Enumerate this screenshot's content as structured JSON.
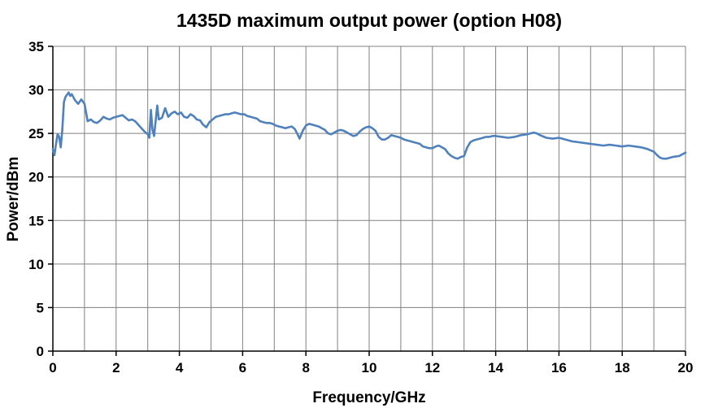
{
  "chart_data": {
    "type": "line",
    "title": "1435D maximum output power (option H08)",
    "xlabel": "Frequency/GHz",
    "ylabel": "Power/dBm",
    "xlim": [
      0,
      20
    ],
    "ylim": [
      0,
      35
    ],
    "x_grid_interval": 1,
    "x_label_interval": 2,
    "y_grid_interval": 5,
    "y_label_interval": 5,
    "grid": true,
    "legend": "none",
    "line_color": "#4F81BD",
    "grid_color": "#808080",
    "axis_color": "#000000",
    "series": [
      {
        "name": "maximum output power",
        "points": [
          [
            0.0,
            23.2
          ],
          [
            0.05,
            22.5
          ],
          [
            0.1,
            23.8
          ],
          [
            0.15,
            24.9
          ],
          [
            0.2,
            24.6
          ],
          [
            0.25,
            23.4
          ],
          [
            0.3,
            25.5
          ],
          [
            0.35,
            28.6
          ],
          [
            0.4,
            29.2
          ],
          [
            0.5,
            29.7
          ],
          [
            0.55,
            29.3
          ],
          [
            0.6,
            29.5
          ],
          [
            0.7,
            28.8
          ],
          [
            0.8,
            28.4
          ],
          [
            0.9,
            28.9
          ],
          [
            1.0,
            28.4
          ],
          [
            1.1,
            26.4
          ],
          [
            1.2,
            26.6
          ],
          [
            1.3,
            26.3
          ],
          [
            1.4,
            26.2
          ],
          [
            1.5,
            26.5
          ],
          [
            1.6,
            26.9
          ],
          [
            1.7,
            26.7
          ],
          [
            1.8,
            26.6
          ],
          [
            1.9,
            26.8
          ],
          [
            2.0,
            26.9
          ],
          [
            2.1,
            27.0
          ],
          [
            2.2,
            27.1
          ],
          [
            2.3,
            26.8
          ],
          [
            2.4,
            26.5
          ],
          [
            2.5,
            26.6
          ],
          [
            2.6,
            26.4
          ],
          [
            2.7,
            26.0
          ],
          [
            2.8,
            25.6
          ],
          [
            2.9,
            25.2
          ],
          [
            3.0,
            24.9
          ],
          [
            3.05,
            24.5
          ],
          [
            3.1,
            27.7
          ],
          [
            3.15,
            25.4
          ],
          [
            3.2,
            24.7
          ],
          [
            3.3,
            28.2
          ],
          [
            3.35,
            26.6
          ],
          [
            3.45,
            26.8
          ],
          [
            3.55,
            27.9
          ],
          [
            3.65,
            26.9
          ],
          [
            3.75,
            27.3
          ],
          [
            3.85,
            27.5
          ],
          [
            3.95,
            27.2
          ],
          [
            4.05,
            27.4
          ],
          [
            4.15,
            26.9
          ],
          [
            4.25,
            26.8
          ],
          [
            4.35,
            27.2
          ],
          [
            4.45,
            27.0
          ],
          [
            4.55,
            26.6
          ],
          [
            4.65,
            26.5
          ],
          [
            4.75,
            26.0
          ],
          [
            4.85,
            25.7
          ],
          [
            4.95,
            26.3
          ],
          [
            5.05,
            26.6
          ],
          [
            5.15,
            26.9
          ],
          [
            5.25,
            27.0
          ],
          [
            5.35,
            27.1
          ],
          [
            5.45,
            27.2
          ],
          [
            5.55,
            27.2
          ],
          [
            5.65,
            27.3
          ],
          [
            5.75,
            27.4
          ],
          [
            5.85,
            27.3
          ],
          [
            5.95,
            27.2
          ],
          [
            6.05,
            27.2
          ],
          [
            6.15,
            27.0
          ],
          [
            6.25,
            26.9
          ],
          [
            6.35,
            26.8
          ],
          [
            6.45,
            26.7
          ],
          [
            6.55,
            26.4
          ],
          [
            6.65,
            26.3
          ],
          [
            6.75,
            26.2
          ],
          [
            6.85,
            26.2
          ],
          [
            6.95,
            26.1
          ],
          [
            7.05,
            25.9
          ],
          [
            7.15,
            25.8
          ],
          [
            7.25,
            25.7
          ],
          [
            7.35,
            25.6
          ],
          [
            7.45,
            25.7
          ],
          [
            7.55,
            25.8
          ],
          [
            7.65,
            25.5
          ],
          [
            7.75,
            24.8
          ],
          [
            7.8,
            24.4
          ],
          [
            7.9,
            25.3
          ],
          [
            8.0,
            25.9
          ],
          [
            8.1,
            26.1
          ],
          [
            8.2,
            26.0
          ],
          [
            8.3,
            25.9
          ],
          [
            8.4,
            25.8
          ],
          [
            8.5,
            25.6
          ],
          [
            8.6,
            25.4
          ],
          [
            8.7,
            25.0
          ],
          [
            8.8,
            24.9
          ],
          [
            8.9,
            25.1
          ],
          [
            9.0,
            25.3
          ],
          [
            9.1,
            25.4
          ],
          [
            9.2,
            25.3
          ],
          [
            9.3,
            25.1
          ],
          [
            9.4,
            24.9
          ],
          [
            9.5,
            24.7
          ],
          [
            9.6,
            24.8
          ],
          [
            9.7,
            25.2
          ],
          [
            9.8,
            25.5
          ],
          [
            9.9,
            25.7
          ],
          [
            10.0,
            25.8
          ],
          [
            10.1,
            25.6
          ],
          [
            10.2,
            25.3
          ],
          [
            10.3,
            24.6
          ],
          [
            10.4,
            24.3
          ],
          [
            10.5,
            24.3
          ],
          [
            10.6,
            24.5
          ],
          [
            10.7,
            24.8
          ],
          [
            10.8,
            24.7
          ],
          [
            10.9,
            24.6
          ],
          [
            11.0,
            24.5
          ],
          [
            11.1,
            24.3
          ],
          [
            11.2,
            24.2
          ],
          [
            11.3,
            24.1
          ],
          [
            11.4,
            24.0
          ],
          [
            11.5,
            23.9
          ],
          [
            11.6,
            23.8
          ],
          [
            11.7,
            23.5
          ],
          [
            11.8,
            23.4
          ],
          [
            11.9,
            23.3
          ],
          [
            12.0,
            23.3
          ],
          [
            12.1,
            23.5
          ],
          [
            12.2,
            23.6
          ],
          [
            12.3,
            23.4
          ],
          [
            12.4,
            23.2
          ],
          [
            12.5,
            22.7
          ],
          [
            12.6,
            22.4
          ],
          [
            12.7,
            22.2
          ],
          [
            12.8,
            22.1
          ],
          [
            12.9,
            22.3
          ],
          [
            13.0,
            22.4
          ],
          [
            13.1,
            23.4
          ],
          [
            13.2,
            24.0
          ],
          [
            13.3,
            24.2
          ],
          [
            13.4,
            24.3
          ],
          [
            13.5,
            24.4
          ],
          [
            13.6,
            24.5
          ],
          [
            13.7,
            24.6
          ],
          [
            13.8,
            24.6
          ],
          [
            13.9,
            24.7
          ],
          [
            14.0,
            24.7
          ],
          [
            14.2,
            24.6
          ],
          [
            14.4,
            24.5
          ],
          [
            14.6,
            24.6
          ],
          [
            14.8,
            24.8
          ],
          [
            15.0,
            24.9
          ],
          [
            15.1,
            25.0
          ],
          [
            15.2,
            25.1
          ],
          [
            15.3,
            25.0
          ],
          [
            15.4,
            24.8
          ],
          [
            15.6,
            24.5
          ],
          [
            15.8,
            24.4
          ],
          [
            16.0,
            24.5
          ],
          [
            16.2,
            24.3
          ],
          [
            16.4,
            24.1
          ],
          [
            16.6,
            24.0
          ],
          [
            16.8,
            23.9
          ],
          [
            17.0,
            23.8
          ],
          [
            17.2,
            23.7
          ],
          [
            17.4,
            23.6
          ],
          [
            17.6,
            23.7
          ],
          [
            17.8,
            23.6
          ],
          [
            18.0,
            23.5
          ],
          [
            18.2,
            23.6
          ],
          [
            18.4,
            23.5
          ],
          [
            18.6,
            23.4
          ],
          [
            18.8,
            23.2
          ],
          [
            19.0,
            22.9
          ],
          [
            19.1,
            22.5
          ],
          [
            19.2,
            22.2
          ],
          [
            19.3,
            22.1
          ],
          [
            19.4,
            22.1
          ],
          [
            19.5,
            22.2
          ],
          [
            19.6,
            22.3
          ],
          [
            19.8,
            22.4
          ],
          [
            20.0,
            22.8
          ]
        ]
      }
    ]
  }
}
